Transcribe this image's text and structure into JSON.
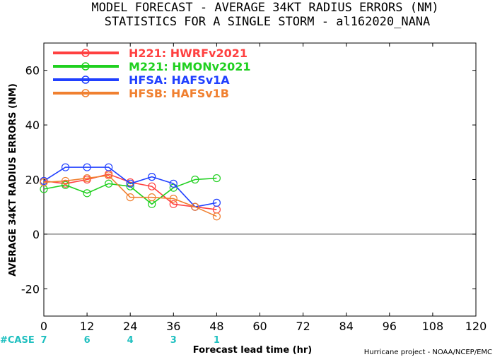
{
  "chart_data": {
    "type": "line",
    "title": "MODEL FORECAST - AVERAGE 34KT RADIUS ERRORS (NM)",
    "subtitle": "STATISTICS FOR A SINGLE STORM - al162020_NANA",
    "xlabel": "Forecast lead time (hr)",
    "ylabel": "AVERAGE 34KT RADIUS ERRORS (NM)",
    "xlim": [
      0,
      120
    ],
    "ylim": [
      -30,
      70
    ],
    "xticks": [
      0,
      12,
      24,
      36,
      48,
      60,
      72,
      84,
      96,
      108,
      120
    ],
    "yticks": [
      -20,
      0,
      20,
      40,
      60
    ],
    "grid": false,
    "zero_line": true,
    "legend_position": "top-left",
    "series": [
      {
        "name": "H221: HWRFv2021",
        "color": "#ff4040",
        "x": [
          0,
          6,
          12,
          18,
          24,
          30,
          36,
          42,
          48
        ],
        "y": [
          19.5,
          18.5,
          20,
          22,
          19,
          17.5,
          11,
          10,
          9
        ]
      },
      {
        "name": "M221: HMONv2021",
        "color": "#20d020",
        "x": [
          0,
          6,
          12,
          18,
          24,
          30,
          36,
          42,
          48
        ],
        "y": [
          16.5,
          18,
          15,
          18.5,
          17.5,
          11,
          17,
          20,
          20.5
        ]
      },
      {
        "name": "HFSA: HAFSv1A",
        "color": "#2040ff",
        "x": [
          0,
          6,
          12,
          18,
          24,
          30,
          36,
          42,
          48
        ],
        "y": [
          19.5,
          24.5,
          24.5,
          24.5,
          18.5,
          21,
          18.5,
          10,
          11.5
        ]
      },
      {
        "name": "HFSB: HAFSv1B",
        "color": "#f08030",
        "x": [
          0,
          6,
          12,
          18,
          24,
          30,
          36,
          42,
          48
        ],
        "y": [
          19,
          19.5,
          20.5,
          21.5,
          13.5,
          13.5,
          13,
          10,
          6.5
        ]
      }
    ],
    "case_label": "#CASE",
    "case_color": "#20c0c0",
    "cases": [
      {
        "x": 0,
        "n": "7"
      },
      {
        "x": 12,
        "n": "6"
      },
      {
        "x": 24,
        "n": "4"
      },
      {
        "x": 36,
        "n": "3"
      },
      {
        "x": 48,
        "n": "1"
      }
    ],
    "credit": "Hurricane project - NOAA/NCEP/EMC"
  }
}
